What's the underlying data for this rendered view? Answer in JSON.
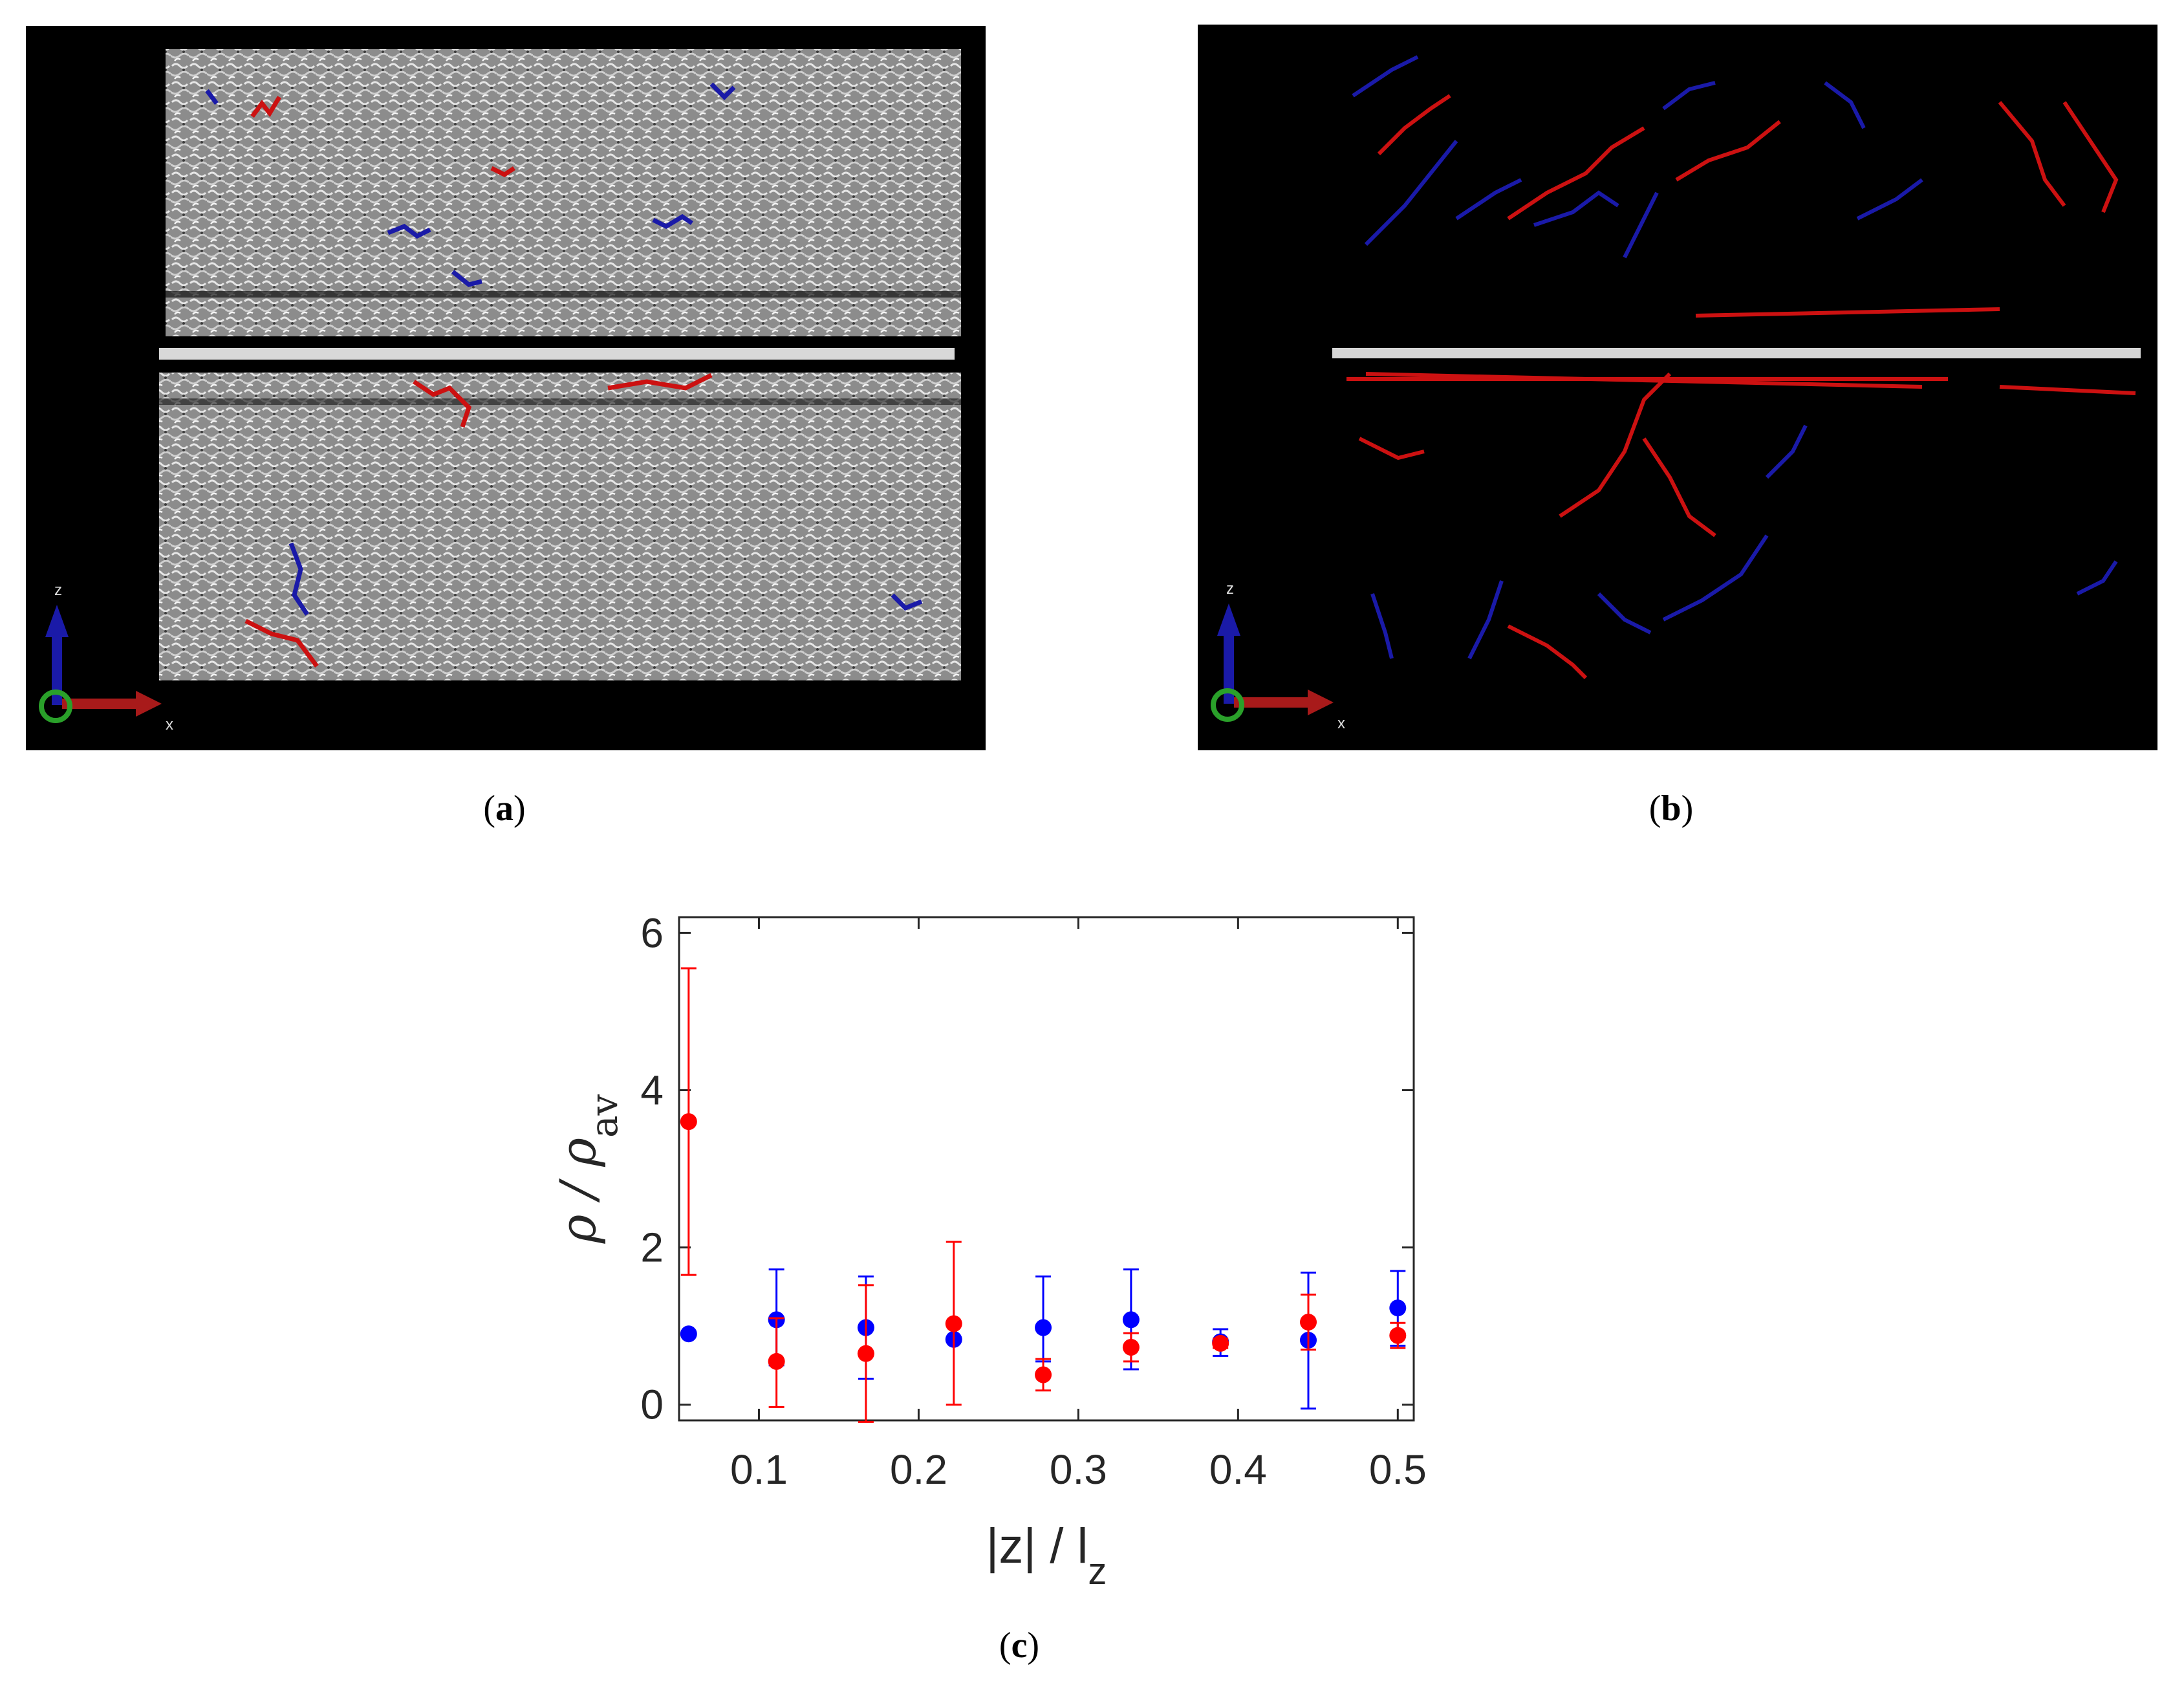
{
  "figure": {
    "panels": [
      {
        "id": "a",
        "caption_letter": "a",
        "description_axis": {
          "vertical": "z",
          "horizontal": "x"
        }
      },
      {
        "id": "b",
        "caption_letter": "b",
        "description_axis": {
          "vertical": "z",
          "horizontal": "x"
        }
      },
      {
        "id": "c",
        "caption_letter": "c"
      }
    ]
  },
  "chart_data": {
    "type": "scatter",
    "xlabel": "|z| / l",
    "xlabel_sub": "z",
    "ylabel": "ρ / ρ",
    "ylabel_sub": "av",
    "xlim": [
      0.05,
      0.51
    ],
    "ylim": [
      -0.2,
      6.2
    ],
    "xticks": [
      0.1,
      0.2,
      0.3,
      0.4,
      0.5
    ],
    "xtick_labels": [
      "0.1",
      "0.2",
      "0.3",
      "0.4",
      "0.5"
    ],
    "yticks": [
      0,
      2,
      4,
      6
    ],
    "ytick_labels": [
      "0",
      "2",
      "4",
      "6"
    ],
    "grid": false,
    "legend": "none",
    "series": [
      {
        "color": "#0000ff",
        "points": [
          {
            "x": 0.056,
            "y": 0.9,
            "lo": 0.9,
            "hi": 0.9
          },
          {
            "x": 0.111,
            "y": 1.08,
            "lo": 0.5,
            "hi": 1.72
          },
          {
            "x": 0.167,
            "y": 0.98,
            "lo": 0.33,
            "hi": 1.63
          },
          {
            "x": 0.222,
            "y": 0.83,
            "lo": 0.83,
            "hi": 0.83
          },
          {
            "x": 0.278,
            "y": 0.98,
            "lo": 0.55,
            "hi": 1.63
          },
          {
            "x": 0.333,
            "y": 1.08,
            "lo": 0.45,
            "hi": 1.72
          },
          {
            "x": 0.389,
            "y": 0.8,
            "lo": 0.62,
            "hi": 0.96
          },
          {
            "x": 0.444,
            "y": 0.82,
            "lo": -0.05,
            "hi": 1.68
          },
          {
            "x": 0.5,
            "y": 1.23,
            "lo": 0.75,
            "hi": 1.7
          }
        ]
      },
      {
        "color": "#ff0000",
        "points": [
          {
            "x": 0.056,
            "y": 3.6,
            "lo": 1.65,
            "hi": 5.55
          },
          {
            "x": 0.111,
            "y": 0.55,
            "lo": -0.03,
            "hi": 1.1
          },
          {
            "x": 0.167,
            "y": 0.65,
            "lo": -0.22,
            "hi": 1.52
          },
          {
            "x": 0.222,
            "y": 1.03,
            "lo": 0.0,
            "hi": 2.07
          },
          {
            "x": 0.278,
            "y": 0.38,
            "lo": 0.18,
            "hi": 0.58
          },
          {
            "x": 0.333,
            "y": 0.73,
            "lo": 0.55,
            "hi": 0.91
          },
          {
            "x": 0.389,
            "y": 0.78,
            "lo": 0.72,
            "hi": 0.84
          },
          {
            "x": 0.444,
            "y": 1.05,
            "lo": 0.7,
            "hi": 1.4
          },
          {
            "x": 0.5,
            "y": 0.88,
            "lo": 0.72,
            "hi": 1.04
          }
        ]
      }
    ]
  }
}
